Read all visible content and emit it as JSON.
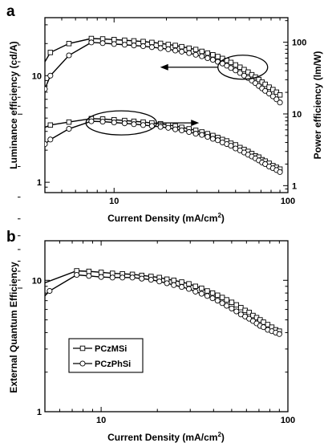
{
  "chart_data": [
    {
      "panel": "a",
      "type": "line",
      "xlabel": "Current Density (mA/cm",
      "xlabel_sup": "2",
      "xlabel_tail": ")",
      "xscale": "log",
      "xlim": [
        4,
        100
      ],
      "x_ticks": [
        {
          "value": 10,
          "label": "10"
        },
        {
          "value": 100,
          "label": "100"
        }
      ],
      "ylabel_left": "Luminance efficiency (cd/A)",
      "yscale_left": "log",
      "ylim_left": [
        0.8,
        35
      ],
      "y_ticks_left": [
        {
          "value": 1,
          "label": "1"
        },
        {
          "value": 10,
          "label": "10"
        }
      ],
      "ylabel_right": "Power efficiency (lm/W)",
      "yscale_right": "log",
      "ylim_right": [
        0.8,
        220
      ],
      "y_ticks_right": [
        {
          "value": 1,
          "label": "1"
        },
        {
          "value": 10,
          "label": "10"
        },
        {
          "value": 100,
          "label": "100"
        }
      ],
      "grid": false,
      "annotations": [
        {
          "type": "ellipse-arrow",
          "target": "left-axis",
          "around_x": 55,
          "around_y": 12
        },
        {
          "type": "ellipse-arrow",
          "target": "right-axis",
          "around_x": 11,
          "around_y": 7.5
        }
      ],
      "series": [
        {
          "marker": "square",
          "axis": "left",
          "x": [
            4,
            4.3,
            5.5,
            7.4,
            8.6,
            10,
            11.5,
            13,
            14.7,
            16.5,
            18.5,
            20.5,
            22.5,
            24.5,
            27,
            29.5,
            32,
            34.5,
            37,
            39.5,
            42,
            44.5,
            47,
            50,
            53,
            56,
            59,
            62,
            65,
            68,
            71,
            74,
            78,
            82,
            86,
            90
          ],
          "values": [
            13.5,
            16.5,
            20,
            22.3,
            22.1,
            21.8,
            21.5,
            21.2,
            20.9,
            20.5,
            20.1,
            19.6,
            19.2,
            18.7,
            18.1,
            17.6,
            16.9,
            16.3,
            15.7,
            15.1,
            14.5,
            13.9,
            13.3,
            12.6,
            12,
            11.4,
            10.8,
            10.2,
            9.7,
            9.2,
            8.7,
            8.3,
            7.8,
            7.4,
            7,
            6.6
          ]
        },
        {
          "marker": "circle",
          "axis": "left",
          "x": [
            4,
            4.3,
            5.5,
            7.4,
            8.6,
            10,
            11.5,
            13,
            14.7,
            16.5,
            18.5,
            20.5,
            22.5,
            24.5,
            27,
            29.5,
            32,
            34.5,
            37,
            39.5,
            42,
            44.5,
            47,
            50,
            53,
            56,
            59,
            62,
            65,
            68,
            71,
            74,
            78,
            82,
            86,
            90
          ],
          "values": [
            7.5,
            10,
            15.5,
            20.5,
            20.2,
            19.8,
            19.5,
            19.2,
            18.9,
            18.5,
            18.1,
            17.7,
            17.2,
            16.8,
            16.3,
            15.7,
            15.2,
            14.6,
            14.1,
            13.5,
            13,
            12.4,
            11.8,
            11.2,
            10.6,
            10,
            9.5,
            9,
            8.5,
            8,
            7.6,
            7.2,
            6.8,
            6.4,
            6,
            5.6
          ]
        },
        {
          "marker": "square",
          "axis": "right",
          "x": [
            4,
            4.3,
            5.5,
            7.4,
            8.6,
            10,
            11.5,
            13,
            14.7,
            16.5,
            18.5,
            20.5,
            22.5,
            24.5,
            27,
            29.5,
            32,
            34.5,
            37,
            39.5,
            42,
            44.5,
            47,
            50,
            53,
            56,
            59,
            62,
            65,
            68,
            71,
            74,
            78,
            82,
            86,
            90
          ],
          "values": [
            6.5,
            7,
            7.7,
            8.6,
            8.5,
            8.3,
            8.1,
            7.9,
            7.7,
            7.5,
            7.3,
            7,
            6.8,
            6.5,
            6.2,
            5.9,
            5.6,
            5.3,
            5,
            4.7,
            4.4,
            4.2,
            3.9,
            3.7,
            3.4,
            3.2,
            3,
            2.8,
            2.6,
            2.5,
            2.3,
            2.2,
            2.05,
            1.9,
            1.8,
            1.7
          ]
        },
        {
          "marker": "circle",
          "axis": "right",
          "x": [
            4,
            4.3,
            5.5,
            7.4,
            8.6,
            10,
            11.5,
            13,
            14.7,
            16.5,
            18.5,
            20.5,
            22.5,
            24.5,
            27,
            29.5,
            32,
            34.5,
            37,
            39.5,
            42,
            44.5,
            47,
            50,
            53,
            56,
            59,
            62,
            65,
            68,
            71,
            74,
            78,
            82,
            86,
            90
          ],
          "values": [
            3.8,
            4.4,
            6.2,
            7.9,
            7.8,
            7.6,
            7.4,
            7.2,
            7,
            6.8,
            6.6,
            6.4,
            6.1,
            5.9,
            5.6,
            5.3,
            5.1,
            4.8,
            4.5,
            4.3,
            4,
            3.8,
            3.6,
            3.3,
            3.1,
            2.9,
            2.7,
            2.55,
            2.4,
            2.25,
            2.1,
            2,
            1.85,
            1.75,
            1.65,
            1.55
          ]
        }
      ]
    },
    {
      "panel": "b",
      "type": "line",
      "xlabel": "Current Density (mA/cm",
      "xlabel_sup": "2",
      "xlabel_tail": ")",
      "xscale": "log",
      "xlim": [
        5,
        100
      ],
      "x_ticks": [
        {
          "value": 10,
          "label": "10"
        },
        {
          "value": 100,
          "label": "100"
        }
      ],
      "ylabel": "External Quantum Efficiency",
      "yscale": "log",
      "ylim": [
        1,
        20
      ],
      "y_ticks": [
        {
          "value": 1,
          "label": "1"
        },
        {
          "value": 10,
          "label": "10"
        }
      ],
      "grid": false,
      "legend_position": "lower-left",
      "series": [
        {
          "name": "PCzMSi",
          "marker": "square",
          "x": [
            4,
            7.4,
            8.6,
            10,
            11.5,
            13,
            14.7,
            16.5,
            18.5,
            20.5,
            22.5,
            24.5,
            27,
            29.5,
            32,
            34.5,
            37,
            39.5,
            42,
            44.5,
            47,
            50,
            53,
            56,
            59,
            62,
            65,
            68,
            71,
            74,
            78,
            82,
            86,
            90
          ],
          "values": [
            8.5,
            11.8,
            11.7,
            11.5,
            11.3,
            11.2,
            11.1,
            10.9,
            10.7,
            10.5,
            10.2,
            10,
            9.7,
            9.4,
            9,
            8.7,
            8.3,
            8,
            7.7,
            7.4,
            7.1,
            6.8,
            6.5,
            6.2,
            5.9,
            5.7,
            5.4,
            5.2,
            5,
            4.8,
            4.6,
            4.4,
            4.2,
            4.1
          ]
        },
        {
          "name": "PCzPhSi",
          "marker": "circle",
          "x": [
            4,
            5.3,
            7.4,
            8.6,
            10,
            11.5,
            13,
            14.7,
            16.5,
            18.5,
            20.5,
            22.5,
            24.5,
            27,
            29.5,
            32,
            34.5,
            37,
            39.5,
            42,
            44.5,
            47,
            50,
            53,
            56,
            59,
            62,
            65,
            68,
            71,
            74,
            78,
            82,
            86,
            90
          ],
          "values": [
            5.5,
            8.3,
            11,
            10.8,
            10.6,
            10.5,
            10.5,
            10.5,
            10.3,
            10.1,
            9.8,
            9.5,
            9.2,
            8.9,
            8.6,
            8.2,
            7.9,
            7.6,
            7.3,
            7,
            6.7,
            6.4,
            6.1,
            5.8,
            5.5,
            5.3,
            5.1,
            4.9,
            4.7,
            4.5,
            4.4,
            4.2,
            4.1,
            4,
            3.9
          ]
        }
      ]
    }
  ]
}
